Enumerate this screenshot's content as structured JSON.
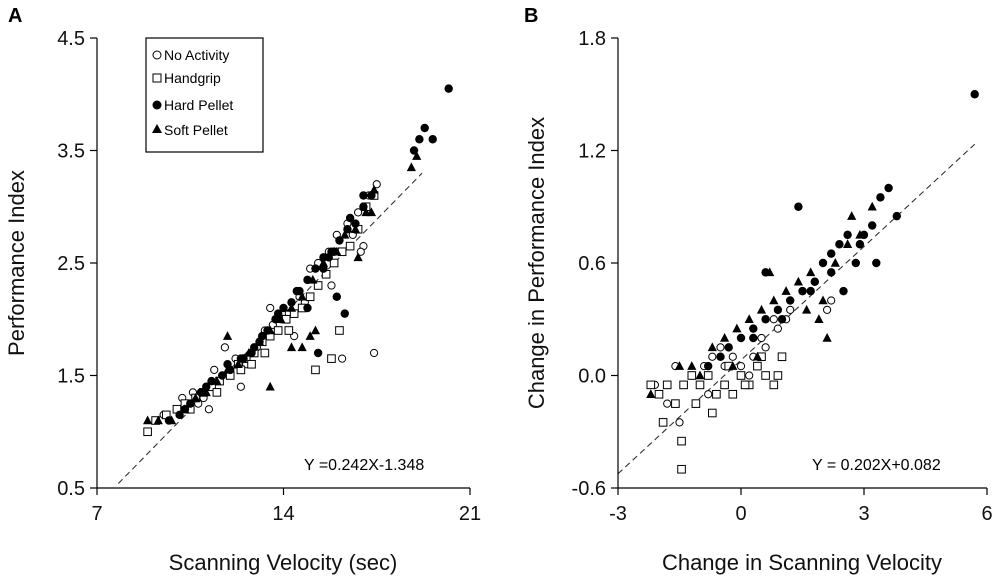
{
  "chart_data": [
    {
      "type": "scatter",
      "panel_label": "A",
      "xlabel": "Scanning Velocity (sec)",
      "ylabel": "Performance Index",
      "xlim": [
        7,
        21
      ],
      "ylim": [
        0.5,
        4.5
      ],
      "xticks": [
        "7",
        "14",
        "21"
      ],
      "yticks": [
        "0.5",
        "1.5",
        "2.5",
        "3.5",
        "4.5"
      ],
      "equation": "Y =0.242X-1.348",
      "fit": {
        "slope": 0.242,
        "intercept": -1.348,
        "x_range": [
          7.8,
          19.2
        ]
      },
      "legend": [
        {
          "name": "No Activity",
          "marker": "circle-open"
        },
        {
          "name": "Handgrip",
          "marker": "square-open"
        },
        {
          "name": "Hard Pellet",
          "marker": "circle-filled"
        },
        {
          "name": "Soft Pellet",
          "marker": "triangle-filled"
        }
      ],
      "series": [
        {
          "name": "No Activity",
          "marker": "circle-open",
          "points": [
            [
              9.5,
              1.15
            ],
            [
              10.2,
              1.3
            ],
            [
              10.6,
              1.35
            ],
            [
              11.0,
              1.3
            ],
            [
              11.4,
              1.55
            ],
            [
              11.8,
              1.75
            ],
            [
              12.2,
              1.65
            ],
            [
              12.6,
              1.6
            ],
            [
              13.0,
              1.75
            ],
            [
              13.3,
              1.9
            ],
            [
              13.5,
              2.1
            ],
            [
              13.9,
              2.0
            ],
            [
              14.2,
              2.05
            ],
            [
              14.6,
              2.2
            ],
            [
              15.0,
              2.45
            ],
            [
              15.3,
              2.5
            ],
            [
              15.7,
              2.6
            ],
            [
              16.0,
              2.75
            ],
            [
              16.4,
              2.85
            ],
            [
              16.8,
              2.95
            ],
            [
              17.2,
              3.1
            ],
            [
              17.5,
              3.2
            ],
            [
              17.0,
              2.65
            ],
            [
              16.2,
              1.65
            ],
            [
              16.9,
              2.6
            ],
            [
              15.8,
              2.3
            ],
            [
              16.6,
              2.75
            ],
            [
              14.8,
              2.15
            ],
            [
              10.8,
              1.25
            ],
            [
              11.2,
              1.2
            ],
            [
              12.4,
              1.4
            ],
            [
              13.6,
              1.95
            ],
            [
              17.4,
              1.7
            ],
            [
              14.4,
              1.85
            ]
          ]
        },
        {
          "name": "Handgrip",
          "marker": "square-open",
          "points": [
            [
              8.9,
              1.0
            ],
            [
              9.2,
              1.1
            ],
            [
              9.6,
              1.15
            ],
            [
              10.0,
              1.2
            ],
            [
              10.3,
              1.25
            ],
            [
              10.7,
              1.3
            ],
            [
              11.0,
              1.35
            ],
            [
              11.3,
              1.4
            ],
            [
              11.6,
              1.45
            ],
            [
              12.0,
              1.5
            ],
            [
              12.3,
              1.6
            ],
            [
              12.6,
              1.65
            ],
            [
              12.9,
              1.7
            ],
            [
              13.2,
              1.8
            ],
            [
              13.5,
              1.85
            ],
            [
              13.8,
              1.9
            ],
            [
              14.1,
              2.0
            ],
            [
              14.4,
              2.05
            ],
            [
              14.7,
              2.1
            ],
            [
              15.0,
              2.2
            ],
            [
              15.3,
              2.3
            ],
            [
              15.6,
              2.4
            ],
            [
              15.9,
              2.5
            ],
            [
              16.2,
              2.6
            ],
            [
              16.5,
              2.65
            ],
            [
              16.8,
              2.8
            ],
            [
              17.1,
              3.0
            ],
            [
              17.4,
              3.1
            ],
            [
              15.2,
              1.55
            ],
            [
              15.8,
              1.65
            ],
            [
              12.8,
              1.6
            ],
            [
              11.5,
              1.35
            ],
            [
              10.5,
              1.2
            ],
            [
              13.3,
              1.7
            ],
            [
              14.2,
              1.9
            ],
            [
              12.4,
              1.55
            ],
            [
              16.1,
              1.9
            ]
          ]
        },
        {
          "name": "Hard Pellet",
          "marker": "circle-filled",
          "points": [
            [
              9.7,
              1.1
            ],
            [
              10.1,
              1.15
            ],
            [
              10.5,
              1.25
            ],
            [
              10.9,
              1.35
            ],
            [
              11.3,
              1.45
            ],
            [
              11.7,
              1.5
            ],
            [
              12.0,
              1.55
            ],
            [
              12.4,
              1.65
            ],
            [
              12.8,
              1.7
            ],
            [
              13.1,
              1.8
            ],
            [
              13.4,
              1.9
            ],
            [
              13.7,
              2.0
            ],
            [
              14.0,
              2.1
            ],
            [
              14.3,
              2.15
            ],
            [
              14.6,
              2.25
            ],
            [
              14.9,
              2.35
            ],
            [
              15.2,
              2.45
            ],
            [
              15.5,
              2.55
            ],
            [
              15.8,
              2.6
            ],
            [
              16.1,
              2.7
            ],
            [
              16.4,
              2.8
            ],
            [
              16.7,
              2.85
            ],
            [
              17.0,
              3.0
            ],
            [
              17.3,
              3.1
            ],
            [
              18.9,
              3.5
            ],
            [
              19.1,
              3.6
            ],
            [
              19.3,
              3.7
            ],
            [
              19.6,
              3.6
            ],
            [
              20.2,
              4.05
            ],
            [
              13.8,
              2.05
            ],
            [
              14.9,
              2.1
            ],
            [
              15.5,
              2.45
            ],
            [
              16.0,
              2.2
            ],
            [
              16.3,
              2.05
            ],
            [
              15.3,
              1.7
            ],
            [
              12.9,
              1.75
            ],
            [
              11.9,
              1.6
            ],
            [
              12.5,
              1.65
            ],
            [
              14.5,
              2.25
            ],
            [
              15.9,
              2.6
            ],
            [
              16.5,
              2.9
            ],
            [
              13.2,
              1.85
            ],
            [
              10.3,
              1.2
            ],
            [
              11.1,
              1.4
            ],
            [
              17.0,
              3.1
            ],
            [
              15.7,
              2.55
            ]
          ]
        },
        {
          "name": "Soft Pellet",
          "marker": "triangle-filled",
          "points": [
            [
              8.9,
              1.1
            ],
            [
              9.3,
              1.1
            ],
            [
              9.8,
              1.1
            ],
            [
              10.3,
              1.2
            ],
            [
              10.7,
              1.3
            ],
            [
              11.1,
              1.35
            ],
            [
              11.5,
              1.45
            ],
            [
              11.9,
              1.55
            ],
            [
              12.3,
              1.6
            ],
            [
              12.7,
              1.7
            ],
            [
              13.1,
              1.8
            ],
            [
              13.5,
              1.9
            ],
            [
              13.9,
              2.0
            ],
            [
              14.3,
              2.1
            ],
            [
              14.7,
              2.2
            ],
            [
              15.1,
              2.35
            ],
            [
              15.5,
              2.5
            ],
            [
              15.9,
              2.6
            ],
            [
              16.3,
              2.75
            ],
            [
              16.7,
              2.8
            ],
            [
              17.1,
              2.95
            ],
            [
              17.4,
              3.15
            ],
            [
              18.8,
              3.35
            ],
            [
              19.0,
              3.45
            ],
            [
              15.0,
              1.85
            ],
            [
              15.2,
              1.9
            ],
            [
              14.7,
              1.75
            ],
            [
              11.9,
              1.85
            ],
            [
              13.5,
              1.4
            ],
            [
              14.3,
              1.75
            ],
            [
              16.0,
              2.6
            ],
            [
              16.8,
              2.55
            ],
            [
              17.3,
              2.95
            ]
          ]
        }
      ]
    },
    {
      "type": "scatter",
      "panel_label": "B",
      "xlabel": "Change in Scanning Velocity",
      "ylabel": "Change in Performance Index",
      "xlim": [
        -3,
        6
      ],
      "ylim": [
        -0.6,
        1.8
      ],
      "xticks": [
        "-3",
        "0",
        "3",
        "6"
      ],
      "yticks": [
        "-0.6",
        "0.0",
        "0.6",
        "1.2",
        "1.8"
      ],
      "equation": "Y = 0.202X+0.082",
      "fit": {
        "slope": 0.202,
        "intercept": 0.082,
        "x_range": [
          -3.0,
          5.7
        ]
      },
      "series": [
        {
          "name": "No Activity",
          "marker": "circle-open",
          "points": [
            [
              -2.1,
              -0.05
            ],
            [
              -1.8,
              -0.15
            ],
            [
              -1.6,
              0.05
            ],
            [
              -1.4,
              -0.05
            ],
            [
              -1.2,
              0.0
            ],
            [
              -0.9,
              0.05
            ],
            [
              -0.7,
              0.1
            ],
            [
              -0.5,
              0.15
            ],
            [
              -0.2,
              0.1
            ],
            [
              0.0,
              0.05
            ],
            [
              0.3,
              0.1
            ],
            [
              0.6,
              0.15
            ],
            [
              0.9,
              0.25
            ],
            [
              1.2,
              0.35
            ],
            [
              1.5,
              0.45
            ],
            [
              1.8,
              0.5
            ],
            [
              2.2,
              0.4
            ],
            [
              0.8,
              0.3
            ],
            [
              -1.5,
              -0.25
            ],
            [
              -0.8,
              -0.1
            ],
            [
              0.2,
              0.0
            ],
            [
              -0.4,
              0.05
            ],
            [
              1.1,
              0.3
            ],
            [
              0.5,
              0.2
            ],
            [
              2.1,
              0.35
            ]
          ]
        },
        {
          "name": "Handgrip",
          "marker": "square-open",
          "points": [
            [
              -2.2,
              -0.05
            ],
            [
              -2.0,
              -0.1
            ],
            [
              -1.8,
              -0.05
            ],
            [
              -1.6,
              -0.15
            ],
            [
              -1.4,
              -0.05
            ],
            [
              -1.2,
              0.0
            ],
            [
              -1.0,
              -0.05
            ],
            [
              -0.8,
              0.0
            ],
            [
              -0.6,
              -0.1
            ],
            [
              -0.4,
              -0.05
            ],
            [
              -0.2,
              -0.1
            ],
            [
              0.0,
              0.0
            ],
            [
              0.2,
              -0.05
            ],
            [
              0.4,
              0.05
            ],
            [
              0.6,
              0.0
            ],
            [
              0.8,
              -0.05
            ],
            [
              1.0,
              0.1
            ],
            [
              -1.45,
              -0.35
            ],
            [
              -1.45,
              -0.5
            ],
            [
              -1.1,
              -0.15
            ],
            [
              -0.7,
              -0.2
            ],
            [
              -0.3,
              0.05
            ],
            [
              0.1,
              -0.05
            ],
            [
              0.5,
              0.1
            ],
            [
              0.9,
              0.0
            ],
            [
              -1.9,
              -0.25
            ]
          ]
        },
        {
          "name": "Hard Pellet",
          "marker": "circle-filled",
          "points": [
            [
              -0.8,
              0.05
            ],
            [
              -0.5,
              0.1
            ],
            [
              -0.3,
              0.15
            ],
            [
              0.0,
              0.2
            ],
            [
              0.3,
              0.25
            ],
            [
              0.6,
              0.3
            ],
            [
              0.9,
              0.35
            ],
            [
              1.2,
              0.4
            ],
            [
              1.5,
              0.45
            ],
            [
              1.8,
              0.5
            ],
            [
              2.0,
              0.6
            ],
            [
              2.2,
              0.65
            ],
            [
              2.4,
              0.7
            ],
            [
              2.6,
              0.75
            ],
            [
              2.8,
              0.6
            ],
            [
              3.0,
              0.75
            ],
            [
              3.2,
              0.8
            ],
            [
              3.4,
              0.95
            ],
            [
              3.6,
              1.0
            ],
            [
              3.8,
              0.85
            ],
            [
              1.4,
              0.9
            ],
            [
              0.6,
              0.55
            ],
            [
              1.0,
              0.3
            ],
            [
              2.2,
              0.55
            ],
            [
              2.9,
              0.7
            ],
            [
              3.3,
              0.6
            ],
            [
              5.7,
              1.5
            ],
            [
              1.7,
              0.45
            ],
            [
              0.3,
              0.2
            ],
            [
              2.5,
              0.45
            ]
          ]
        },
        {
          "name": "Soft Pellet",
          "marker": "triangle-filled",
          "points": [
            [
              -2.2,
              -0.1
            ],
            [
              -1.5,
              0.05
            ],
            [
              -1.0,
              0.0
            ],
            [
              -0.7,
              0.15
            ],
            [
              -0.4,
              0.2
            ],
            [
              -0.1,
              0.25
            ],
            [
              0.2,
              0.3
            ],
            [
              0.5,
              0.35
            ],
            [
              0.8,
              0.4
            ],
            [
              1.1,
              0.45
            ],
            [
              1.4,
              0.5
            ],
            [
              1.7,
              0.55
            ],
            [
              2.0,
              0.4
            ],
            [
              2.3,
              0.6
            ],
            [
              2.6,
              0.7
            ],
            [
              2.9,
              0.75
            ],
            [
              3.2,
              0.9
            ],
            [
              2.1,
              0.2
            ],
            [
              1.6,
              0.35
            ],
            [
              0.7,
              0.55
            ],
            [
              -0.2,
              0.05
            ],
            [
              0.4,
              0.1
            ],
            [
              1.9,
              0.3
            ],
            [
              2.7,
              0.85
            ],
            [
              -1.2,
              0.05
            ]
          ]
        }
      ]
    }
  ]
}
